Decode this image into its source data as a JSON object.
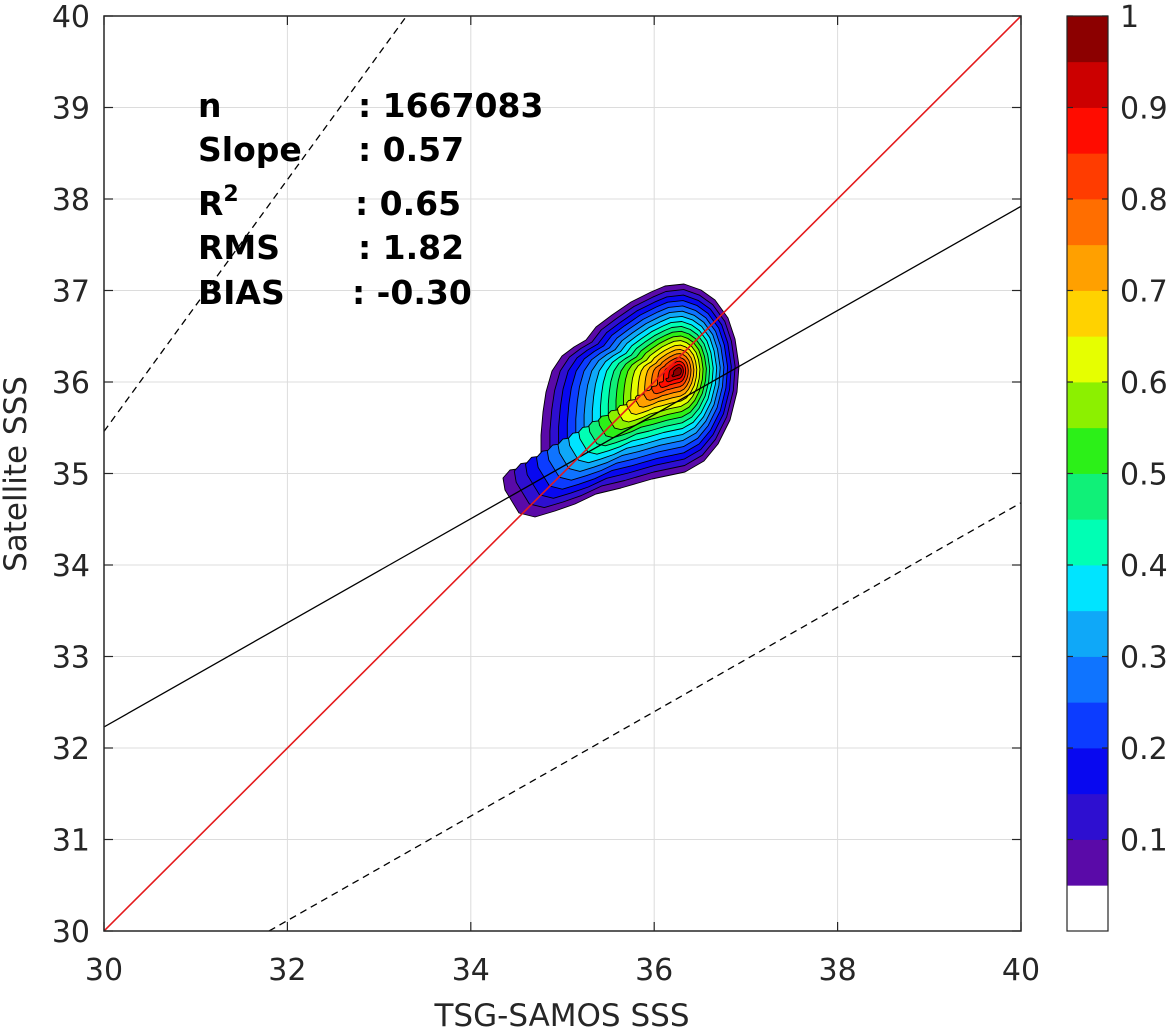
{
  "chart_data": {
    "type": "contour_scatter",
    "xlabel": "TSG-SAMOS SSS",
    "ylabel": "Satellite SSS",
    "xlim": [
      30,
      40
    ],
    "ylim": [
      30,
      40
    ],
    "xticks": [
      "30",
      "32",
      "34",
      "36",
      "38",
      "40"
    ],
    "yticks": [
      "30",
      "31",
      "32",
      "33",
      "34",
      "35",
      "36",
      "37",
      "38",
      "39",
      "40"
    ],
    "grid": true,
    "stats": [
      {
        "label": "n",
        "value": ": 1667083"
      },
      {
        "label": "Slope",
        "value": ": 0.57"
      },
      {
        "label": "R",
        "sup": "2",
        "value": ": 0.65"
      },
      {
        "label": "RMS",
        "value": ": 1.82"
      },
      {
        "label": "BIAS",
        "value": ": -0.30"
      }
    ],
    "lines": {
      "one_to_one": {
        "from": [
          30,
          30
        ],
        "to": [
          40,
          40
        ],
        "color": "#e41a1c"
      },
      "fit": {
        "from": [
          30,
          32.23
        ],
        "to": [
          40,
          37.92
        ],
        "color": "#000000"
      },
      "upper_dashed": {
        "from": [
          30,
          35.46
        ],
        "to": [
          33.3,
          40
        ]
      },
      "lower_dashed": {
        "from": [
          31.8,
          30
        ],
        "to": [
          40,
          34.68
        ]
      }
    },
    "density_peak": {
      "x": 36.27,
      "y": 36.12
    },
    "contour_levels": [
      0.05,
      0.1,
      0.15,
      0.2,
      0.25,
      0.3,
      0.35,
      0.4,
      0.45,
      0.5,
      0.55,
      0.6,
      0.65,
      0.7,
      0.75,
      0.8,
      0.85,
      0.9,
      0.95,
      1.0
    ],
    "colorbar": {
      "range": [
        0,
        1
      ],
      "tick_labels": [
        "0.1",
        "0.2",
        "0.3",
        "0.4",
        "0.5",
        "0.6",
        "0.7",
        "0.8",
        "0.9",
        "1"
      ],
      "tick_values": [
        0.1,
        0.2,
        0.3,
        0.4,
        0.5,
        0.6,
        0.7,
        0.8,
        0.9,
        1.0
      ],
      "colors": [
        "#ffffff",
        "#5a0aa8",
        "#2e0fd0",
        "#0808f0",
        "#0c3cff",
        "#0f74ff",
        "#0fa8f8",
        "#00e4ff",
        "#00ffb4",
        "#10f078",
        "#2cf018",
        "#8cf000",
        "#e6ff00",
        "#ffd200",
        "#ffa000",
        "#ff6e00",
        "#ff3c00",
        "#ff0c00",
        "#cc0000",
        "#8c0000"
      ]
    }
  }
}
